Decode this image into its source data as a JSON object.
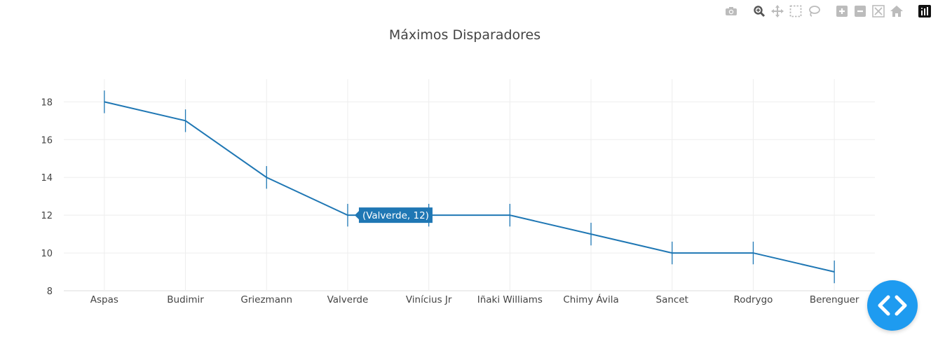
{
  "modebar": {
    "buttons": [
      "camera-icon",
      "zoom-icon",
      "pan-icon",
      "box-select-icon",
      "lasso-icon",
      "zoom-in-icon",
      "zoom-out-icon",
      "autoscale-icon",
      "reset-axes-icon",
      "plotly-logo-icon"
    ]
  },
  "fab": {
    "icon": "code-brackets-icon"
  },
  "colors": {
    "line": "#1f77b4",
    "grid": "#eeeeee",
    "tick": "#444444",
    "fab": "#1e9bf0",
    "modebar": "#bcbcbc"
  },
  "chart_data": {
    "type": "line",
    "title": "Máximos Disparadores",
    "xlabel": "",
    "ylabel": "",
    "categories": [
      "Aspas",
      "Budimir",
      "Griezmann",
      "Valverde",
      "Vinícius Jr",
      "Iñaki Williams",
      "Chimy Ávila",
      "Sancet",
      "Rodrygo",
      "Berenguer"
    ],
    "values": [
      18,
      17,
      14,
      12,
      12,
      12,
      11,
      10,
      10,
      9
    ],
    "error": 0.6,
    "ylim": [
      8,
      19.2
    ],
    "yticks": [
      8,
      10,
      12,
      14,
      16,
      18
    ],
    "grid": true,
    "hover": {
      "index": 3,
      "text": "(Valverde, 12)"
    }
  }
}
